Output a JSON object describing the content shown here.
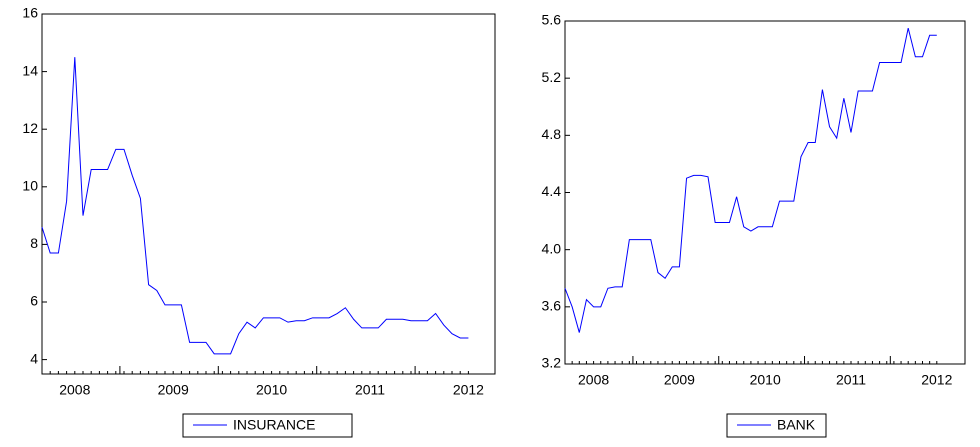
{
  "chart_data": [
    {
      "type": "line",
      "categories": [
        null,
        null,
        null,
        null,
        "2008",
        null,
        null,
        null,
        null,
        null,
        null,
        null,
        null,
        null,
        null,
        null,
        "2009",
        null,
        null,
        null,
        null,
        null,
        null,
        null,
        null,
        null,
        null,
        null,
        "2010",
        null,
        null,
        null,
        null,
        null,
        null,
        null,
        null,
        null,
        null,
        null,
        "2011",
        null,
        null,
        null,
        null,
        null,
        null,
        null,
        null,
        null,
        null,
        null,
        "2012"
      ],
      "series": [
        {
          "name": "INSURANCE",
          "color": "#0000ff",
          "values": [
            8.6,
            7.7,
            7.7,
            9.5,
            14.5,
            9.0,
            10.6,
            10.6,
            10.6,
            11.3,
            11.3,
            10.4,
            9.6,
            6.6,
            6.4,
            5.9,
            5.9,
            5.9,
            4.6,
            4.6,
            4.6,
            4.2,
            4.2,
            4.2,
            4.9,
            5.3,
            5.1,
            5.45,
            5.45,
            5.45,
            5.3,
            5.35,
            5.35,
            5.45,
            5.45,
            5.45,
            5.6,
            5.8,
            5.4,
            5.1,
            5.1,
            5.1,
            5.4,
            5.4,
            5.4,
            5.35,
            5.35,
            5.35,
            5.6,
            5.2,
            4.9,
            4.75,
            4.75
          ]
        }
      ],
      "ylim": [
        3.5,
        16
      ],
      "yticks": [
        4,
        6,
        8,
        10,
        12,
        14,
        16
      ],
      "legend": "bottom"
    },
    {
      "type": "line",
      "categories": [
        null,
        null,
        null,
        null,
        "2008",
        null,
        null,
        null,
        null,
        null,
        null,
        null,
        null,
        null,
        null,
        null,
        "2009",
        null,
        null,
        null,
        null,
        null,
        null,
        null,
        null,
        null,
        null,
        null,
        "2010",
        null,
        null,
        null,
        null,
        null,
        null,
        null,
        null,
        null,
        null,
        null,
        "2011",
        null,
        null,
        null,
        null,
        null,
        null,
        null,
        null,
        null,
        null,
        null,
        "2012"
      ],
      "series": [
        {
          "name": "BANK",
          "color": "#0000ff",
          "values": [
            3.73,
            3.6,
            3.42,
            3.65,
            3.6,
            3.6,
            3.73,
            3.74,
            3.74,
            4.07,
            4.07,
            4.07,
            4.07,
            3.84,
            3.8,
            3.88,
            3.88,
            4.5,
            4.52,
            4.52,
            4.51,
            4.19,
            4.19,
            4.19,
            4.37,
            4.16,
            4.13,
            4.16,
            4.16,
            4.16,
            4.34,
            4.34,
            4.34,
            4.65,
            4.75,
            4.75,
            5.12,
            4.86,
            4.78,
            5.06,
            4.82,
            5.11,
            5.11,
            5.11,
            5.31,
            5.31,
            5.31,
            5.31,
            5.55,
            5.35,
            5.35,
            5.5,
            5.5
          ]
        }
      ],
      "ylim": [
        3.2,
        5.6
      ],
      "yticks": [
        3.2,
        3.6,
        {
          "value": 4,
          "label": "4.0"
        },
        4.4,
        4.8,
        5.2,
        5.6
      ],
      "legend": "bottom"
    }
  ]
}
